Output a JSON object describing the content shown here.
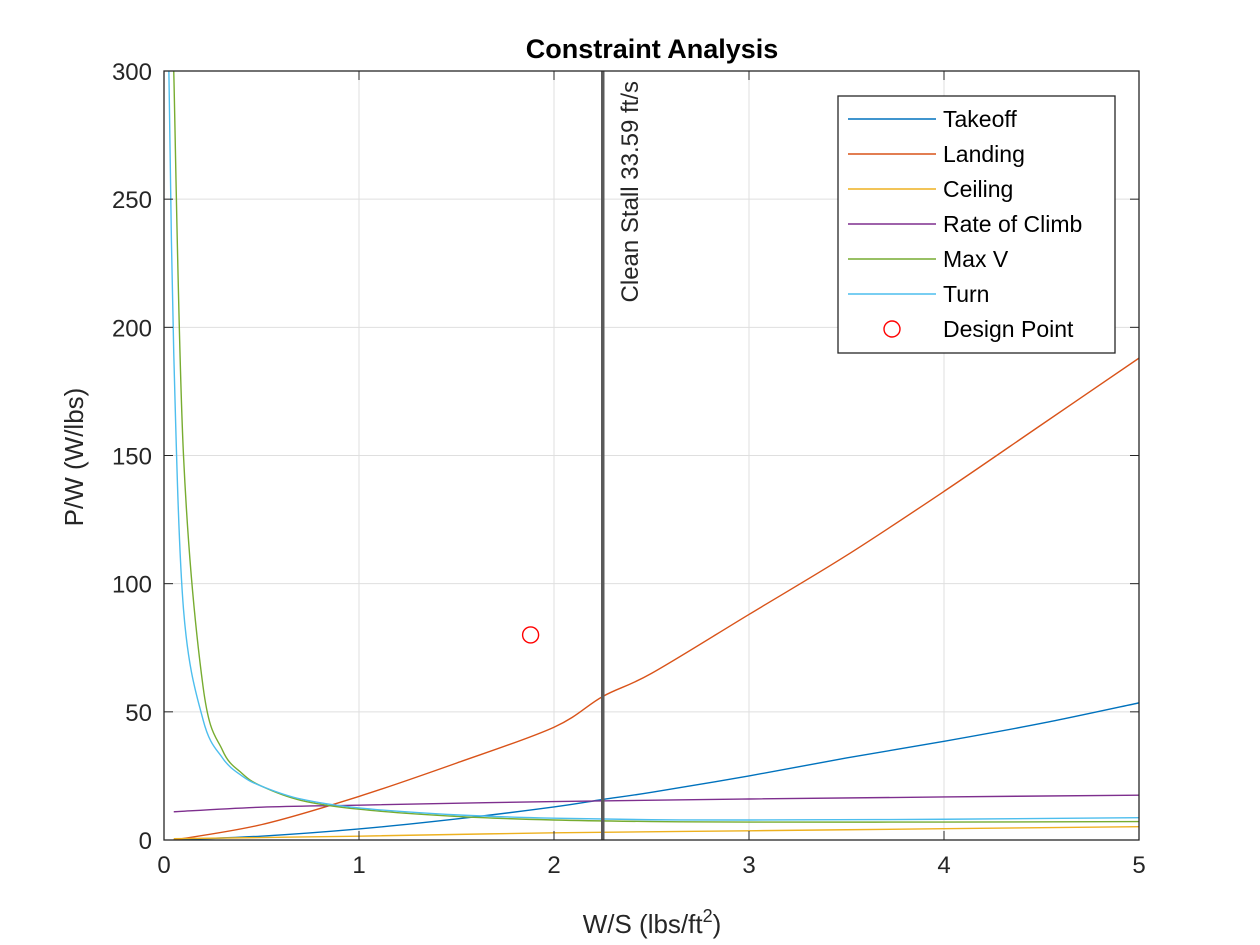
{
  "chart_data": {
    "type": "line",
    "title": "Constraint Analysis",
    "xlabel": "W/S (lbs/ft",
    "xlabel_superscript": "2",
    "xlabel_suffix": ")",
    "ylabel": "P/W (W/lbs)",
    "xlim": [
      0,
      5
    ],
    "ylim": [
      0,
      300
    ],
    "xticks": [
      0,
      1,
      2,
      3,
      4,
      5
    ],
    "yticks": [
      0,
      50,
      100,
      150,
      200,
      250,
      300
    ],
    "grid": true,
    "legend_position": "top-right",
    "series": [
      {
        "name": "Takeoff",
        "color": "#0072BD",
        "x": [
          0.05,
          0.5,
          1,
          1.5,
          2,
          2.25,
          2.5,
          3,
          3.5,
          4,
          4.5,
          5
        ],
        "y": [
          0.1,
          1.5,
          4.3,
          8.2,
          12.9,
          15.8,
          18.6,
          25,
          32,
          38.5,
          45.5,
          53.5
        ]
      },
      {
        "name": "Landing",
        "color": "#D95319",
        "x": [
          0.05,
          0.5,
          1,
          1.5,
          2,
          2.25,
          2.5,
          3,
          3.5,
          4,
          4.5,
          5
        ],
        "y": [
          0,
          6,
          17,
          30,
          44,
          56,
          65,
          88,
          111,
          136,
          162,
          188
        ]
      },
      {
        "name": "Ceiling",
        "color": "#EDB120",
        "x": [
          0.05,
          1,
          2,
          3,
          4,
          5
        ],
        "y": [
          0.5,
          1.5,
          2.8,
          3.6,
          4.4,
          5.2
        ]
      },
      {
        "name": "Rate of Climb",
        "color": "#7E2F8E",
        "x": [
          0.05,
          0.5,
          1,
          2,
          3,
          4,
          5
        ],
        "y": [
          11,
          12.8,
          13.6,
          15,
          16,
          16.8,
          17.5
        ]
      },
      {
        "name": "Max V",
        "color": "#77AC30",
        "x": [
          0.05,
          0.1,
          0.2,
          0.3,
          0.4,
          0.5,
          0.7,
          1,
          1.5,
          2,
          2.5,
          3,
          4,
          5
        ],
        "y": [
          300,
          150,
          60,
          35,
          26,
          21,
          15.5,
          12,
          9.2,
          7.8,
          7.2,
          7,
          7,
          7.2
        ]
      },
      {
        "name": "Turn",
        "color": "#4DBEEE",
        "x": [
          0.025,
          0.05,
          0.1,
          0.2,
          0.3,
          0.4,
          0.5,
          0.7,
          1,
          1.5,
          2,
          2.5,
          3,
          4,
          5
        ],
        "y": [
          300,
          190,
          90,
          47,
          32,
          25,
          21,
          16,
          12.5,
          9.8,
          8.5,
          7.9,
          7.8,
          8.1,
          8.7
        ]
      }
    ],
    "design_point": {
      "name": "Design Point",
      "x": 1.88,
      "y": 80,
      "color": "#FF0000"
    },
    "vertical_line": {
      "x": 2.25,
      "label": "Clean Stall 33.59 ft/s",
      "color": "#5a5a5a"
    }
  }
}
